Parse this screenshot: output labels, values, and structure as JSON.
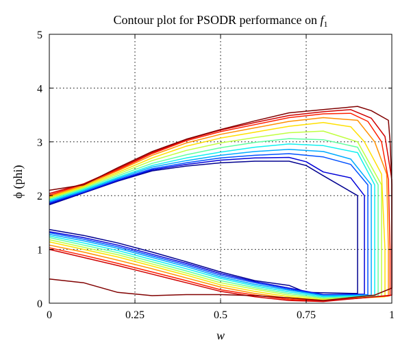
{
  "chart_data": {
    "type": "contour",
    "title": {
      "prefix": "Contour plot for PSODR performance on ",
      "symbol": "f",
      "subscript": "1"
    },
    "xlabel": "w",
    "ylabel": "ϕ (phi)",
    "xlim": [
      0,
      1
    ],
    "ylim": [
      0,
      5
    ],
    "xticks": [
      0,
      0.25,
      0.5,
      0.75,
      1
    ],
    "xtick_labels": [
      "0",
      "0.25",
      "0.5",
      "0.75",
      "1"
    ],
    "yticks": [
      0,
      1,
      2,
      3,
      4,
      5
    ],
    "ytick_labels": [
      "0",
      "1",
      "2",
      "3",
      "4",
      "5"
    ],
    "grid": true,
    "grid_style": "dotted",
    "legend": "none",
    "contours": [
      {
        "color": "#00008f",
        "points": [
          [
            0,
            1.83
          ],
          [
            0.1,
            2.05
          ],
          [
            0.2,
            2.27
          ],
          [
            0.3,
            2.46
          ],
          [
            0.4,
            2.55
          ],
          [
            0.5,
            2.61
          ],
          [
            0.6,
            2.64
          ],
          [
            0.7,
            2.64
          ],
          [
            0.75,
            2.56
          ],
          [
            0.8,
            2.37
          ],
          [
            0.9,
            2.0
          ],
          [
            0.9,
            0.18
          ],
          [
            0.75,
            0.2
          ],
          [
            0.7,
            0.33
          ],
          [
            0.6,
            0.42
          ],
          [
            0.5,
            0.58
          ],
          [
            0.4,
            0.77
          ],
          [
            0.3,
            0.95
          ],
          [
            0.2,
            1.12
          ],
          [
            0.1,
            1.26
          ],
          [
            0,
            1.37
          ]
        ]
      },
      {
        "color": "#0000d8",
        "points": [
          [
            0,
            1.85
          ],
          [
            0.1,
            2.06
          ],
          [
            0.2,
            2.28
          ],
          [
            0.3,
            2.48
          ],
          [
            0.4,
            2.58
          ],
          [
            0.5,
            2.66
          ],
          [
            0.6,
            2.7
          ],
          [
            0.7,
            2.71
          ],
          [
            0.75,
            2.63
          ],
          [
            0.8,
            2.44
          ],
          [
            0.88,
            2.33
          ],
          [
            0.92,
            2.0
          ],
          [
            0.92,
            0.17
          ],
          [
            0.8,
            0.16
          ],
          [
            0.7,
            0.28
          ],
          [
            0.6,
            0.4
          ],
          [
            0.5,
            0.55
          ],
          [
            0.4,
            0.74
          ],
          [
            0.3,
            0.91
          ],
          [
            0.2,
            1.08
          ],
          [
            0.1,
            1.22
          ],
          [
            0,
            1.33
          ]
        ]
      },
      {
        "color": "#0050ff",
        "points": [
          [
            0,
            1.87
          ],
          [
            0.1,
            2.07
          ],
          [
            0.2,
            2.3
          ],
          [
            0.3,
            2.5
          ],
          [
            0.4,
            2.61
          ],
          [
            0.5,
            2.7
          ],
          [
            0.6,
            2.75
          ],
          [
            0.7,
            2.78
          ],
          [
            0.8,
            2.72
          ],
          [
            0.88,
            2.58
          ],
          [
            0.93,
            2.2
          ],
          [
            0.93,
            0.16
          ],
          [
            0.8,
            0.15
          ],
          [
            0.7,
            0.26
          ],
          [
            0.6,
            0.38
          ],
          [
            0.5,
            0.52
          ],
          [
            0.4,
            0.71
          ],
          [
            0.3,
            0.88
          ],
          [
            0.2,
            1.05
          ],
          [
            0.1,
            1.19
          ],
          [
            0,
            1.31
          ]
        ]
      },
      {
        "color": "#00aaff",
        "points": [
          [
            0,
            1.89
          ],
          [
            0.1,
            2.09
          ],
          [
            0.2,
            2.32
          ],
          [
            0.3,
            2.53
          ],
          [
            0.4,
            2.65
          ],
          [
            0.5,
            2.75
          ],
          [
            0.6,
            2.82
          ],
          [
            0.7,
            2.86
          ],
          [
            0.8,
            2.82
          ],
          [
            0.88,
            2.68
          ],
          [
            0.94,
            2.2
          ],
          [
            0.94,
            0.15
          ],
          [
            0.8,
            0.14
          ],
          [
            0.7,
            0.24
          ],
          [
            0.6,
            0.35
          ],
          [
            0.5,
            0.49
          ],
          [
            0.4,
            0.68
          ],
          [
            0.3,
            0.85
          ],
          [
            0.2,
            1.02
          ],
          [
            0.1,
            1.16
          ],
          [
            0,
            1.28
          ]
        ]
      },
      {
        "color": "#0ff0f0",
        "points": [
          [
            0,
            1.91
          ],
          [
            0.1,
            2.11
          ],
          [
            0.2,
            2.34
          ],
          [
            0.3,
            2.56
          ],
          [
            0.4,
            2.7
          ],
          [
            0.5,
            2.81
          ],
          [
            0.6,
            2.9
          ],
          [
            0.7,
            2.96
          ],
          [
            0.8,
            2.93
          ],
          [
            0.9,
            2.8
          ],
          [
            0.95,
            2.2
          ],
          [
            0.95,
            0.14
          ],
          [
            0.8,
            0.12
          ],
          [
            0.7,
            0.21
          ],
          [
            0.6,
            0.32
          ],
          [
            0.5,
            0.46
          ],
          [
            0.4,
            0.64
          ],
          [
            0.3,
            0.81
          ],
          [
            0.2,
            0.98
          ],
          [
            0.1,
            1.12
          ],
          [
            0,
            1.25
          ]
        ]
      },
      {
        "color": "#60ffa0",
        "points": [
          [
            0,
            1.93
          ],
          [
            0.1,
            2.13
          ],
          [
            0.2,
            2.37
          ],
          [
            0.3,
            2.6
          ],
          [
            0.4,
            2.76
          ],
          [
            0.5,
            2.89
          ],
          [
            0.6,
            2.99
          ],
          [
            0.7,
            3.06
          ],
          [
            0.8,
            3.04
          ],
          [
            0.9,
            2.9
          ],
          [
            0.96,
            2.2
          ],
          [
            0.96,
            0.13
          ],
          [
            0.8,
            0.1
          ],
          [
            0.7,
            0.18
          ],
          [
            0.6,
            0.29
          ],
          [
            0.5,
            0.42
          ],
          [
            0.4,
            0.6
          ],
          [
            0.3,
            0.77
          ],
          [
            0.2,
            0.94
          ],
          [
            0.1,
            1.08
          ],
          [
            0,
            1.22
          ]
        ]
      },
      {
        "color": "#c0ff40",
        "points": [
          [
            0,
            1.95
          ],
          [
            0.1,
            2.15
          ],
          [
            0.2,
            2.4
          ],
          [
            0.3,
            2.65
          ],
          [
            0.4,
            2.84
          ],
          [
            0.5,
            2.98
          ],
          [
            0.6,
            3.08
          ],
          [
            0.7,
            3.17
          ],
          [
            0.8,
            3.2
          ],
          [
            0.9,
            3.0
          ],
          [
            0.97,
            2.2
          ],
          [
            0.97,
            0.12
          ],
          [
            0.8,
            0.08
          ],
          [
            0.7,
            0.15
          ],
          [
            0.6,
            0.26
          ],
          [
            0.5,
            0.38
          ],
          [
            0.4,
            0.56
          ],
          [
            0.3,
            0.73
          ],
          [
            0.2,
            0.9
          ],
          [
            0.1,
            1.04
          ],
          [
            0,
            1.18
          ]
        ]
      },
      {
        "color": "#ffe000",
        "points": [
          [
            0,
            1.97
          ],
          [
            0.1,
            2.17
          ],
          [
            0.2,
            2.43
          ],
          [
            0.3,
            2.7
          ],
          [
            0.4,
            2.92
          ],
          [
            0.5,
            3.07
          ],
          [
            0.6,
            3.18
          ],
          [
            0.7,
            3.29
          ],
          [
            0.8,
            3.36
          ],
          [
            0.88,
            3.28
          ],
          [
            0.92,
            3.0
          ],
          [
            0.97,
            2.4
          ],
          [
            0.98,
            1.0
          ],
          [
            0.98,
            0.12
          ],
          [
            0.8,
            0.06
          ],
          [
            0.7,
            0.12
          ],
          [
            0.6,
            0.22
          ],
          [
            0.5,
            0.34
          ],
          [
            0.4,
            0.52
          ],
          [
            0.3,
            0.69
          ],
          [
            0.2,
            0.86
          ],
          [
            0.1,
            1.0
          ],
          [
            0,
            1.14
          ]
        ]
      },
      {
        "color": "#ff9000",
        "points": [
          [
            0,
            1.99
          ],
          [
            0.1,
            2.19
          ],
          [
            0.2,
            2.46
          ],
          [
            0.3,
            2.75
          ],
          [
            0.4,
            2.98
          ],
          [
            0.5,
            3.14
          ],
          [
            0.6,
            3.26
          ],
          [
            0.7,
            3.38
          ],
          [
            0.8,
            3.45
          ],
          [
            0.9,
            3.4
          ],
          [
            0.95,
            3.0
          ],
          [
            0.985,
            2.4
          ],
          [
            0.99,
            1.0
          ],
          [
            0.99,
            0.13
          ],
          [
            0.8,
            0.05
          ],
          [
            0.7,
            0.09
          ],
          [
            0.6,
            0.18
          ],
          [
            0.5,
            0.3
          ],
          [
            0.4,
            0.47
          ],
          [
            0.3,
            0.64
          ],
          [
            0.2,
            0.8
          ],
          [
            0.1,
            0.95
          ],
          [
            0,
            1.08
          ]
        ]
      },
      {
        "color": "#ff2000",
        "points": [
          [
            0,
            2.01
          ],
          [
            0.1,
            2.21
          ],
          [
            0.2,
            2.48
          ],
          [
            0.3,
            2.78
          ],
          [
            0.4,
            3.02
          ],
          [
            0.5,
            3.19
          ],
          [
            0.6,
            3.32
          ],
          [
            0.7,
            3.45
          ],
          [
            0.8,
            3.52
          ],
          [
            0.88,
            3.53
          ],
          [
            0.93,
            3.38
          ],
          [
            0.97,
            3.0
          ],
          [
            0.99,
            2.3
          ],
          [
            0.995,
            1.0
          ],
          [
            0.995,
            0.14
          ],
          [
            0.8,
            0.04
          ],
          [
            0.7,
            0.07
          ],
          [
            0.6,
            0.15
          ],
          [
            0.5,
            0.25
          ],
          [
            0.4,
            0.42
          ],
          [
            0.3,
            0.58
          ],
          [
            0.2,
            0.74
          ],
          [
            0.1,
            0.89
          ],
          [
            0,
            1.03
          ]
        ]
      },
      {
        "color": "#d00000",
        "points": [
          [
            0,
            2.04
          ],
          [
            0.1,
            2.22
          ],
          [
            0.2,
            2.5
          ],
          [
            0.3,
            2.8
          ],
          [
            0.4,
            3.04
          ],
          [
            0.5,
            3.22
          ],
          [
            0.6,
            3.36
          ],
          [
            0.7,
            3.49
          ],
          [
            0.8,
            3.56
          ],
          [
            0.88,
            3.6
          ],
          [
            0.94,
            3.44
          ],
          [
            0.98,
            3.1
          ],
          [
            1.0,
            2.3
          ],
          [
            1.0,
            0.15
          ],
          [
            0.8,
            0.03
          ],
          [
            0.7,
            0.05
          ],
          [
            0.6,
            0.12
          ],
          [
            0.5,
            0.22
          ],
          [
            0.4,
            0.38
          ],
          [
            0.3,
            0.54
          ],
          [
            0.2,
            0.7
          ],
          [
            0.1,
            0.85
          ],
          [
            0,
            1.0
          ]
        ]
      },
      {
        "color": "#800000",
        "points": [
          [
            0,
            2.1
          ],
          [
            0.1,
            2.2
          ],
          [
            0.2,
            2.52
          ],
          [
            0.3,
            2.82
          ],
          [
            0.4,
            3.05
          ],
          [
            0.5,
            3.23
          ],
          [
            0.6,
            3.39
          ],
          [
            0.7,
            3.54
          ],
          [
            0.8,
            3.6
          ],
          [
            0.9,
            3.66
          ],
          [
            0.94,
            3.58
          ],
          [
            0.99,
            3.4
          ],
          [
            0.995,
            3.0
          ],
          [
            1.0,
            2.2
          ],
          [
            1.0,
            0.28
          ],
          [
            0.95,
            0.15
          ],
          [
            0.8,
            0.05
          ],
          [
            0.7,
            0.1
          ],
          [
            0.6,
            0.14
          ],
          [
            0.5,
            0.16
          ],
          [
            0.4,
            0.16
          ],
          [
            0.3,
            0.14
          ],
          [
            0.2,
            0.2
          ],
          [
            0.1,
            0.38
          ],
          [
            0,
            0.45
          ]
        ]
      }
    ]
  }
}
